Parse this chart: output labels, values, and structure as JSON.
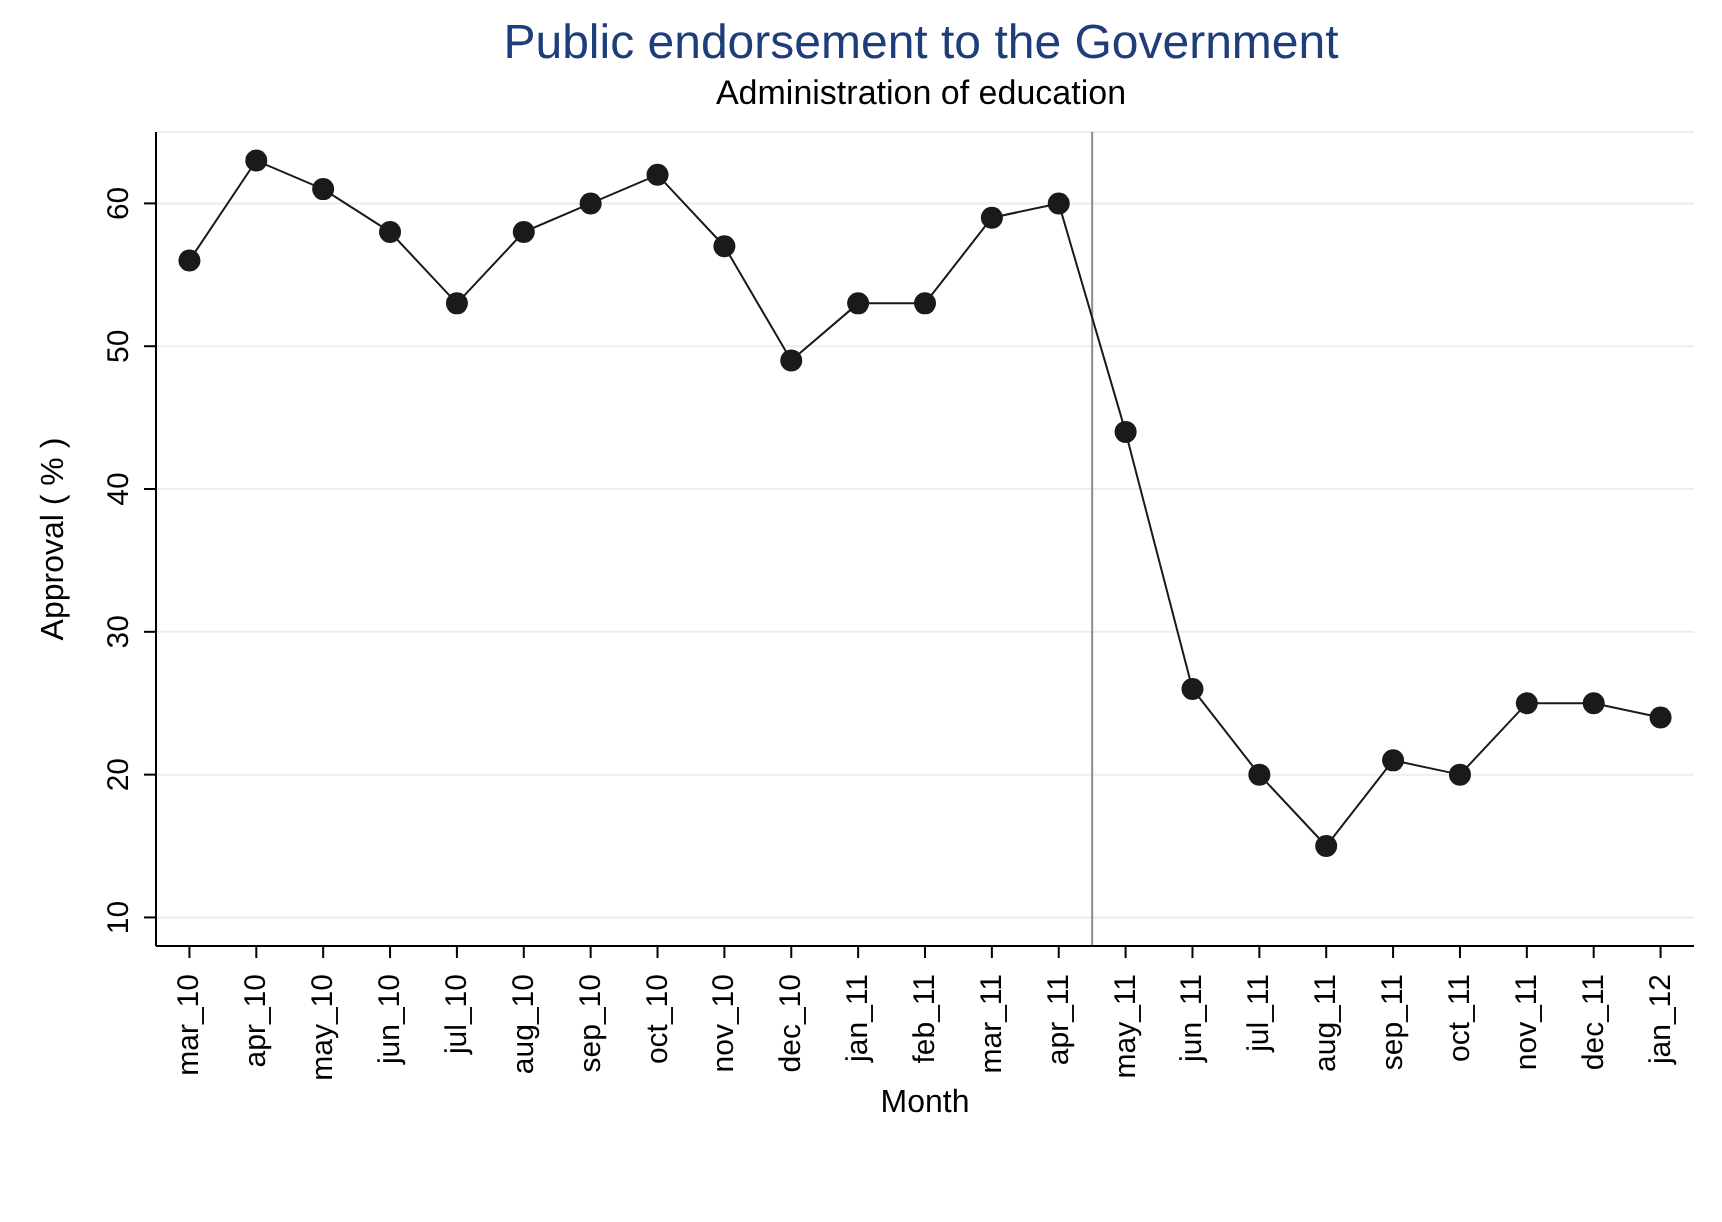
{
  "chart_data": {
    "type": "line",
    "title": "Public endorsement to the Government",
    "subtitle": "Administration of education",
    "xlabel": "Month",
    "ylabel": "Approval ( % )",
    "categories": [
      "mar_10",
      "apr_10",
      "may_10",
      "jun_10",
      "jul_10",
      "aug_10",
      "sep_10",
      "oct_10",
      "nov_10",
      "dec_10",
      "jan_11",
      "feb_11",
      "mar_11",
      "apr_11",
      "may_11",
      "jun_11",
      "jul_11",
      "aug_11",
      "sep_11",
      "oct_11",
      "nov_11",
      "dec_11",
      "jan_12"
    ],
    "series": [
      {
        "color": "#1a1a1a",
        "values": [
          56,
          63,
          61,
          58,
          53,
          58,
          60,
          62,
          57,
          49,
          53,
          53,
          59,
          60,
          44,
          26,
          20,
          15,
          21,
          20,
          25,
          25,
          24
        ]
      }
    ],
    "ylim": [
      8,
      65
    ],
    "yticks": [
      10,
      20,
      30,
      40,
      50,
      60
    ],
    "grid": "y",
    "marker": "circle",
    "line_style": "solid",
    "ref_lines": [
      {
        "axis": "x",
        "value": "may_11",
        "color": "#8c8c8c"
      }
    ]
  }
}
